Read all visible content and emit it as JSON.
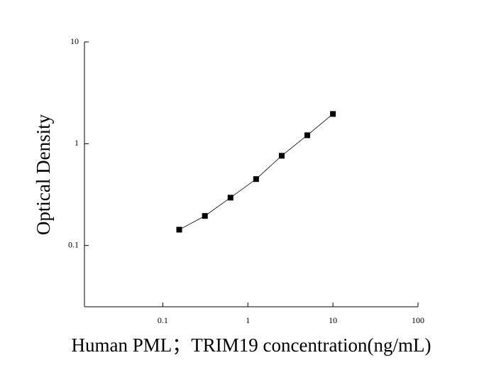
{
  "chart_data": {
    "type": "scatter",
    "xlabel": "Human PML；TRIM19 concentration(ng/mL)",
    "ylabel": "Optical Density",
    "x": [
      0.156,
      0.3125,
      0.625,
      1.25,
      2.5,
      5,
      10
    ],
    "series": [
      {
        "color": "#000000",
        "values": [
          0.143,
          0.195,
          0.295,
          0.449,
          0.761,
          1.21,
          1.96
        ]
      }
    ],
    "xlim": [
      0.012,
      100
    ],
    "ylim": [
      0.025,
      10
    ],
    "xticks": [
      0.1,
      1,
      10,
      100
    ],
    "yticks": [
      0.1,
      1,
      10
    ],
    "xscale": "log",
    "yscale": "log"
  }
}
